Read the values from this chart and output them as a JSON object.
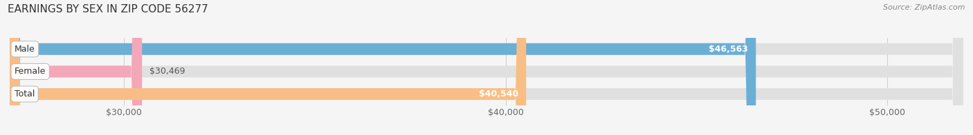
{
  "title": "EARNINGS BY SEX IN ZIP CODE 56277",
  "source": "Source: ZipAtlas.com",
  "categories": [
    "Male",
    "Female",
    "Total"
  ],
  "values": [
    46563,
    30469,
    40540
  ],
  "bar_colors": [
    "#6baed6",
    "#f4a7b9",
    "#f9be85"
  ],
  "bg_color": "#f5f5f5",
  "bar_bg_color": "#e0e0e0",
  "xmin": 27000,
  "xmax": 52000,
  "xticks": [
    30000,
    40000,
    50000
  ],
  "xtick_labels": [
    "$30,000",
    "$40,000",
    "$50,000"
  ],
  "value_label_inside_color": "#ffffff",
  "value_label_outside_color": "#555555",
  "title_fontsize": 11,
  "tick_fontsize": 9,
  "bar_height": 0.52,
  "figsize": [
    14.06,
    1.96
  ],
  "dpi": 100
}
